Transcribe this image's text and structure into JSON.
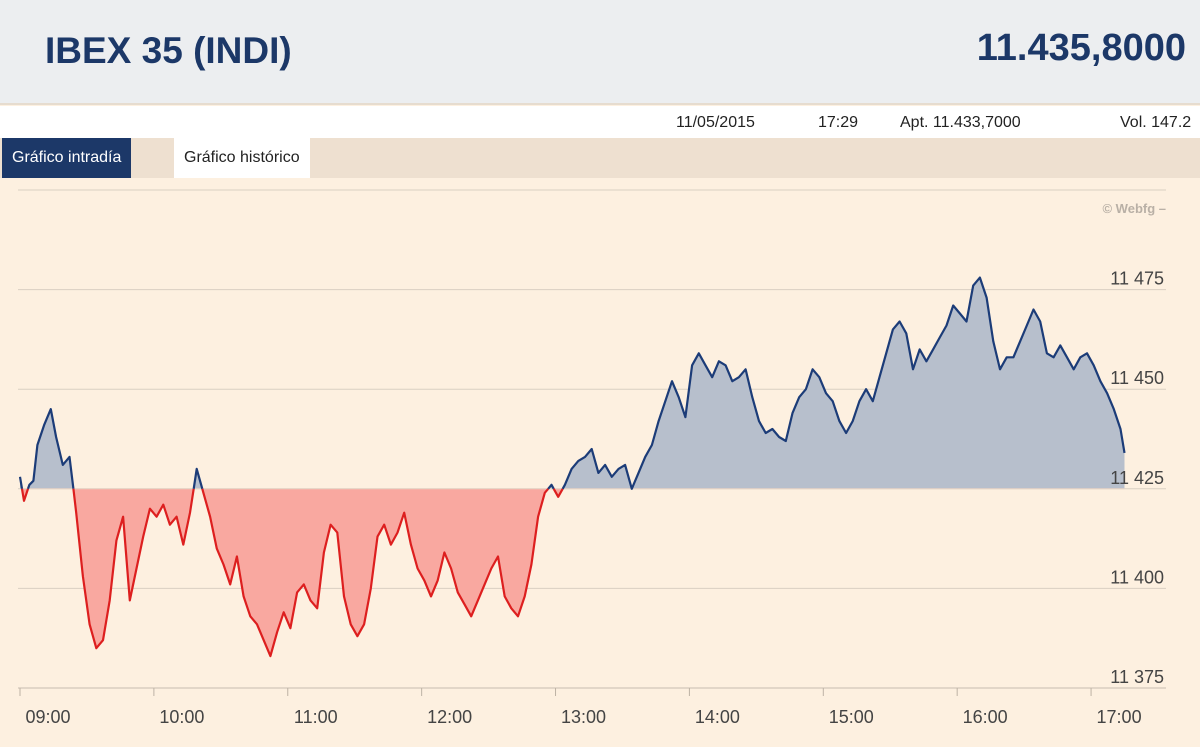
{
  "header": {
    "title": "IBEX 35 (INDI)",
    "price": "11.435,8000"
  },
  "info": {
    "date": "11/05/2015",
    "time": "17:29",
    "open": "Apt. 11.433,7000",
    "volume": "Vol. 147.2"
  },
  "tabs": [
    {
      "label": "Gráfico intradía",
      "active": true
    },
    {
      "label": "Gráfico histórico",
      "active": false
    }
  ],
  "watermark": "© Webfg –",
  "colors": {
    "up_line": "#1c3c78",
    "up_fill": "#b7bfcc",
    "down_line": "#dd1f1f",
    "down_fill": "#f9a8a0",
    "grid": "#d9cfc2"
  },
  "chart_data": {
    "type": "area",
    "title": "",
    "xlabel": "",
    "ylabel": "",
    "baseline": 11425,
    "ylim": [
      11375,
      11500
    ],
    "xlim": [
      9.0,
      17.5
    ],
    "y_ticks": [
      {
        "value": 11375,
        "label": "11 375"
      },
      {
        "value": 11400,
        "label": "11 400"
      },
      {
        "value": 11425,
        "label": "11 425"
      },
      {
        "value": 11450,
        "label": "11 450"
      },
      {
        "value": 11475,
        "label": "11 475"
      }
    ],
    "x_ticks": [
      {
        "value": 9,
        "label": "09:00"
      },
      {
        "value": 10,
        "label": "10:00"
      },
      {
        "value": 11,
        "label": "11:00"
      },
      {
        "value": 12,
        "label": "12:00"
      },
      {
        "value": 13,
        "label": "13:00"
      },
      {
        "value": 14,
        "label": "14:00"
      },
      {
        "value": 15,
        "label": "15:00"
      },
      {
        "value": 16,
        "label": "16:00"
      },
      {
        "value": 17,
        "label": "17:00"
      }
    ],
    "series": [
      {
        "points": [
          [
            9.0,
            11428
          ],
          [
            9.03,
            11422
          ],
          [
            9.07,
            11426
          ],
          [
            9.1,
            11427
          ],
          [
            9.13,
            11436
          ],
          [
            9.18,
            11441
          ],
          [
            9.23,
            11445
          ],
          [
            9.27,
            11438
          ],
          [
            9.32,
            11431
          ],
          [
            9.37,
            11433
          ],
          [
            9.42,
            11419
          ],
          [
            9.47,
            11403
          ],
          [
            9.52,
            11391
          ],
          [
            9.57,
            11385
          ],
          [
            9.62,
            11387
          ],
          [
            9.67,
            11397
          ],
          [
            9.72,
            11412
          ],
          [
            9.77,
            11418
          ],
          [
            9.82,
            11397
          ],
          [
            9.87,
            11405
          ],
          [
            9.92,
            11413
          ],
          [
            9.97,
            11420
          ],
          [
            10.02,
            11418
          ],
          [
            10.07,
            11421
          ],
          [
            10.12,
            11416
          ],
          [
            10.17,
            11418
          ],
          [
            10.22,
            11411
          ],
          [
            10.27,
            11419
          ],
          [
            10.32,
            11430
          ],
          [
            10.37,
            11424
          ],
          [
            10.42,
            11418
          ],
          [
            10.47,
            11410
          ],
          [
            10.52,
            11406
          ],
          [
            10.57,
            11401
          ],
          [
            10.62,
            11408
          ],
          [
            10.67,
            11398
          ],
          [
            10.72,
            11393
          ],
          [
            10.77,
            11391
          ],
          [
            10.82,
            11387
          ],
          [
            10.87,
            11383
          ],
          [
            10.92,
            11389
          ],
          [
            10.97,
            11394
          ],
          [
            11.02,
            11390
          ],
          [
            11.07,
            11399
          ],
          [
            11.12,
            11401
          ],
          [
            11.17,
            11397
          ],
          [
            11.22,
            11395
          ],
          [
            11.27,
            11409
          ],
          [
            11.32,
            11416
          ],
          [
            11.37,
            11414
          ],
          [
            11.42,
            11398
          ],
          [
            11.47,
            11391
          ],
          [
            11.52,
            11388
          ],
          [
            11.57,
            11391
          ],
          [
            11.62,
            11400
          ],
          [
            11.67,
            11413
          ],
          [
            11.72,
            11416
          ],
          [
            11.77,
            11411
          ],
          [
            11.82,
            11414
          ],
          [
            11.87,
            11419
          ],
          [
            11.92,
            11411
          ],
          [
            11.97,
            11405
          ],
          [
            12.02,
            11402
          ],
          [
            12.07,
            11398
          ],
          [
            12.12,
            11402
          ],
          [
            12.17,
            11409
          ],
          [
            12.22,
            11405
          ],
          [
            12.27,
            11399
          ],
          [
            12.32,
            11396
          ],
          [
            12.37,
            11393
          ],
          [
            12.42,
            11397
          ],
          [
            12.47,
            11401
          ],
          [
            12.52,
            11405
          ],
          [
            12.57,
            11408
          ],
          [
            12.62,
            11398
          ],
          [
            12.67,
            11395
          ],
          [
            12.72,
            11393
          ],
          [
            12.77,
            11398
          ],
          [
            12.82,
            11406
          ],
          [
            12.87,
            11418
          ],
          [
            12.92,
            11424
          ],
          [
            12.97,
            11426
          ],
          [
            13.02,
            11423
          ],
          [
            13.07,
            11426
          ],
          [
            13.12,
            11430
          ],
          [
            13.17,
            11432
          ],
          [
            13.22,
            11433
          ],
          [
            13.27,
            11435
          ],
          [
            13.32,
            11429
          ],
          [
            13.37,
            11431
          ],
          [
            13.42,
            11428
          ],
          [
            13.47,
            11430
          ],
          [
            13.52,
            11431
          ],
          [
            13.57,
            11425
          ],
          [
            13.62,
            11429
          ],
          [
            13.67,
            11433
          ],
          [
            13.72,
            11436
          ],
          [
            13.77,
            11442
          ],
          [
            13.82,
            11447
          ],
          [
            13.87,
            11452
          ],
          [
            13.92,
            11448
          ],
          [
            13.97,
            11443
          ],
          [
            14.02,
            11456
          ],
          [
            14.07,
            11459
          ],
          [
            14.12,
            11456
          ],
          [
            14.17,
            11453
          ],
          [
            14.22,
            11457
          ],
          [
            14.27,
            11456
          ],
          [
            14.32,
            11452
          ],
          [
            14.37,
            11453
          ],
          [
            14.42,
            11455
          ],
          [
            14.47,
            11448
          ],
          [
            14.52,
            11442
          ],
          [
            14.57,
            11439
          ],
          [
            14.62,
            11440
          ],
          [
            14.67,
            11438
          ],
          [
            14.72,
            11437
          ],
          [
            14.77,
            11444
          ],
          [
            14.82,
            11448
          ],
          [
            14.87,
            11450
          ],
          [
            14.92,
            11455
          ],
          [
            14.97,
            11453
          ],
          [
            15.02,
            11449
          ],
          [
            15.07,
            11447
          ],
          [
            15.12,
            11442
          ],
          [
            15.17,
            11439
          ],
          [
            15.22,
            11442
          ],
          [
            15.27,
            11447
          ],
          [
            15.32,
            11450
          ],
          [
            15.37,
            11447
          ],
          [
            15.42,
            11453
          ],
          [
            15.47,
            11459
          ],
          [
            15.52,
            11465
          ],
          [
            15.57,
            11467
          ],
          [
            15.62,
            11464
          ],
          [
            15.67,
            11455
          ],
          [
            15.72,
            11460
          ],
          [
            15.77,
            11457
          ],
          [
            15.82,
            11460
          ],
          [
            15.87,
            11463
          ],
          [
            15.92,
            11466
          ],
          [
            15.97,
            11471
          ],
          [
            16.02,
            11469
          ],
          [
            16.07,
            11467
          ],
          [
            16.12,
            11476
          ],
          [
            16.17,
            11478
          ],
          [
            16.22,
            11473
          ],
          [
            16.27,
            11462
          ],
          [
            16.32,
            11455
          ],
          [
            16.37,
            11458
          ],
          [
            16.42,
            11458
          ],
          [
            16.47,
            11462
          ],
          [
            16.52,
            11466
          ],
          [
            16.57,
            11470
          ],
          [
            16.62,
            11467
          ],
          [
            16.67,
            11459
          ],
          [
            16.72,
            11458
          ],
          [
            16.77,
            11461
          ],
          [
            16.82,
            11458
          ],
          [
            16.87,
            11455
          ],
          [
            16.92,
            11458
          ],
          [
            16.97,
            11459
          ],
          [
            17.02,
            11456
          ],
          [
            17.07,
            11452
          ],
          [
            17.12,
            11449
          ],
          [
            17.17,
            11445
          ],
          [
            17.22,
            11440
          ],
          [
            17.25,
            11434
          ]
        ]
      }
    ]
  }
}
